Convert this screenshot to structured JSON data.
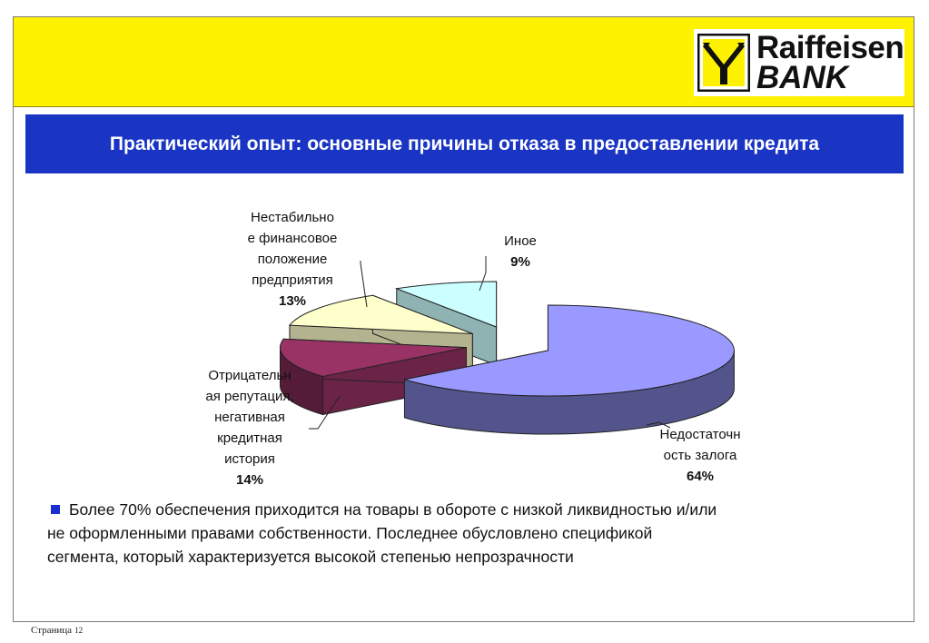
{
  "header": {
    "logo_line1": "Raiffeisen",
    "logo_line2": "BANK",
    "band_color": "#fff200",
    "logo_icon": "raiffeisen-crossed-horses-icon"
  },
  "slide": {
    "title": "Практический опыт: основные причины отказа в предоставлении кредита",
    "title_bg": "#1a35c4"
  },
  "chart_data": {
    "type": "pie",
    "style": "3d-exploded",
    "slices": [
      {
        "label": "Недостаточность залога",
        "label_text": "Недостаточн\nость залога",
        "value": 64,
        "display": "64%",
        "color": "#9999ff"
      },
      {
        "label": "Отрицательная репутация, негативная кредитная история",
        "label_text": "Отрицательн\nая репутация,\nнегативная\nкредитная\nистория",
        "value": 14,
        "display": "14%",
        "color": "#993366"
      },
      {
        "label": "Нестабильное финансовое положение предприятия",
        "label_text": "Нестабильно\nе финансовое\nположение\nпредприятия",
        "value": 13,
        "display": "13%",
        "color": "#ffffcc"
      },
      {
        "label": "Иное",
        "label_text": "Иное",
        "value": 9,
        "display": "9%",
        "color": "#ccffff"
      }
    ]
  },
  "note": {
    "text_line1": "Более 70% обеспечения приходится на товары в обороте с низкой ликвидностью и/или",
    "text_line2": "не оформленными правами собственности. Последнее обусловлено спецификой",
    "text_line3": "сегмента, который характеризуется высокой степенью непрозрачности",
    "bullet_color": "#1a2fd0"
  },
  "footer": {
    "page_label": "Страница",
    "page_number": "12"
  }
}
